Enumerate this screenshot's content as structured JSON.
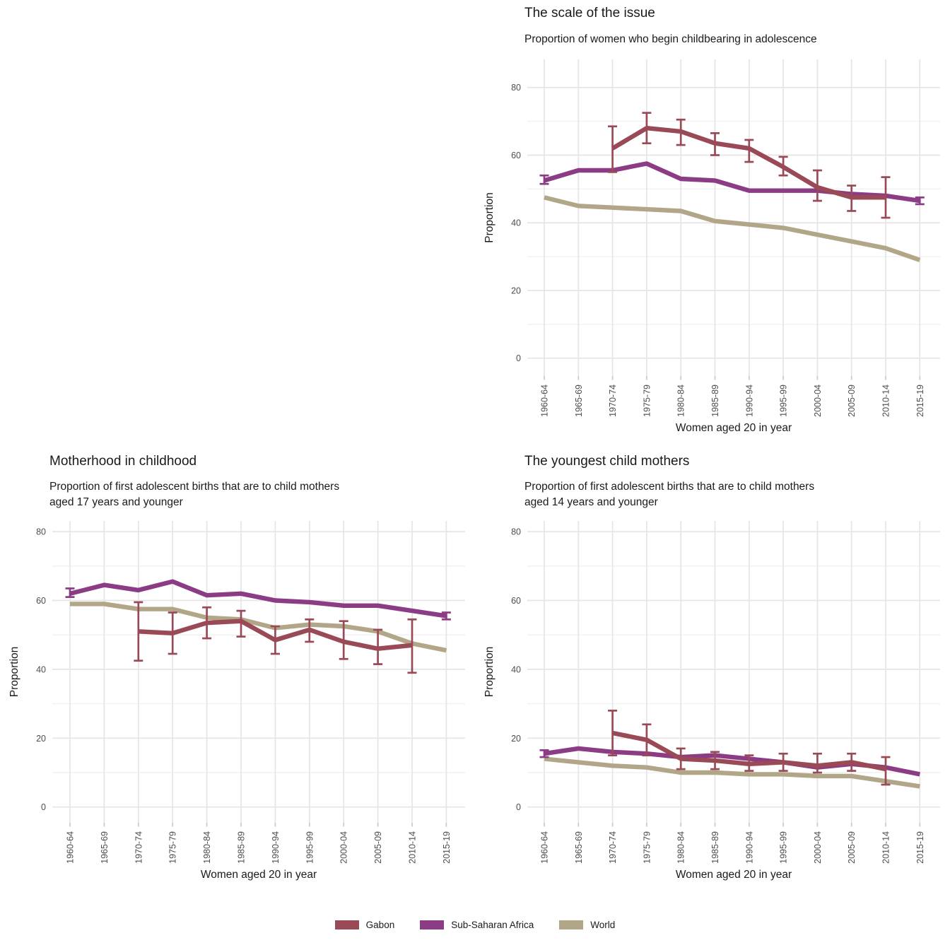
{
  "colors": {
    "gabon": "#994A56",
    "sub_saharan_africa": "#8C3B85",
    "world": "#B2A689",
    "grid_major": "#E5E5E5",
    "grid_minor": "#F1F1F1",
    "tick_mark": "#C9C9C9",
    "tick_text": "#4D4D4D",
    "title_text": "#1A1A1A"
  },
  "axes": {
    "x_title": "Women aged 20 in year",
    "y_title": "Proportion",
    "yticks": [
      0,
      20,
      40,
      60,
      80
    ],
    "yminor": [
      10,
      30,
      50,
      70
    ]
  },
  "legend": {
    "items": [
      {
        "label": "Gabon",
        "color_key": "gabon"
      },
      {
        "label": "Sub-Saharan Africa",
        "color_key": "sub_saharan_africa"
      },
      {
        "label": "World",
        "color_key": "world"
      }
    ]
  },
  "chart_data": [
    {
      "type": "line",
      "title": "The scale of the issue",
      "subtitle_lines": [
        "Proportion of women who begin childbearing in adolescence"
      ],
      "xlabel": "Women aged 20 in year",
      "ylabel": "Proportion",
      "ylim": [
        0,
        80
      ],
      "grid": true,
      "legend_position": "bottom",
      "categories": [
        "1960-64",
        "1965-69",
        "1970-74",
        "1975-79",
        "1980-84",
        "1985-89",
        "1990-94",
        "1995-99",
        "2000-04",
        "2005-09",
        "2010-14",
        "2015-19"
      ],
      "series": [
        {
          "name": "Gabon",
          "color_key": "gabon",
          "values": [
            null,
            null,
            62,
            68,
            67,
            63.5,
            62,
            56.5,
            50.5,
            47.5,
            47.5,
            null
          ],
          "error_bars": [
            null,
            null,
            [
              55,
              68.5
            ],
            [
              63.5,
              72.5
            ],
            [
              63,
              70.5
            ],
            [
              60,
              66.5
            ],
            [
              58,
              64.5
            ],
            [
              54,
              59.5
            ],
            [
              46.5,
              55.5
            ],
            [
              43.5,
              51
            ],
            [
              41.5,
              53.5
            ],
            null
          ]
        },
        {
          "name": "Sub-Saharan Africa",
          "color_key": "sub_saharan_africa",
          "values": [
            52.5,
            55.5,
            55.5,
            57.5,
            53,
            52.5,
            49.5,
            49.5,
            49.5,
            48.5,
            48,
            46.5
          ],
          "error_bars": [
            [
              51.5,
              54
            ],
            null,
            null,
            null,
            null,
            null,
            null,
            null,
            null,
            null,
            null,
            [
              45.5,
              47.5
            ]
          ]
        },
        {
          "name": "World",
          "color_key": "world",
          "values": [
            47.5,
            45,
            44.5,
            44,
            43.5,
            40.5,
            39.5,
            38.5,
            36.5,
            34.5,
            32.5,
            29
          ],
          "error_bars": null
        }
      ]
    },
    {
      "type": "line",
      "title": "Motherhood in childhood",
      "subtitle_lines": [
        "Proportion of first adolescent births that are to child mothers",
        "aged 17 years and younger"
      ],
      "xlabel": "Women aged 20 in year",
      "ylabel": "Proportion",
      "ylim": [
        0,
        80
      ],
      "grid": true,
      "legend_position": "bottom",
      "categories": [
        "1960-64",
        "1965-69",
        "1970-74",
        "1975-79",
        "1980-84",
        "1985-89",
        "1990-94",
        "1995-99",
        "2000-04",
        "2005-09",
        "2010-14",
        "2015-19"
      ],
      "series": [
        {
          "name": "Gabon",
          "color_key": "gabon",
          "values": [
            null,
            null,
            51,
            50.5,
            53.5,
            54,
            48.5,
            51.5,
            48,
            46,
            47,
            null
          ],
          "error_bars": [
            null,
            null,
            [
              42.5,
              59.5
            ],
            [
              44.5,
              56.5
            ],
            [
              49,
              58
            ],
            [
              49.5,
              57
            ],
            [
              44.5,
              52.5
            ],
            [
              48,
              54.5
            ],
            [
              43,
              54
            ],
            [
              41.5,
              51.5
            ],
            [
              39,
              54.5
            ],
            null
          ]
        },
        {
          "name": "Sub-Saharan Africa",
          "color_key": "sub_saharan_africa",
          "values": [
            62,
            64.5,
            63,
            65.5,
            61.5,
            62,
            60,
            59.5,
            58.5,
            58.5,
            57,
            55.5
          ],
          "error_bars": [
            [
              61,
              63.5
            ],
            null,
            null,
            null,
            null,
            null,
            null,
            null,
            null,
            null,
            null,
            [
              54.5,
              56.5
            ]
          ]
        },
        {
          "name": "World",
          "color_key": "world",
          "values": [
            59,
            59,
            57.5,
            57.5,
            55,
            54.5,
            52,
            53,
            52.5,
            51,
            47.5,
            45.5
          ],
          "error_bars": null
        }
      ]
    },
    {
      "type": "line",
      "title": "The youngest child mothers",
      "subtitle_lines": [
        "Proportion of first adolescent births that are to child mothers",
        "aged 14 years and younger"
      ],
      "xlabel": "Women aged 20 in year",
      "ylabel": "Proportion",
      "ylim": [
        0,
        80
      ],
      "grid": true,
      "legend_position": "bottom",
      "categories": [
        "1960-64",
        "1965-69",
        "1970-74",
        "1975-79",
        "1980-84",
        "1985-89",
        "1990-94",
        "1995-99",
        "2000-04",
        "2005-09",
        "2010-14",
        "2015-19"
      ],
      "series": [
        {
          "name": "Gabon",
          "color_key": "gabon",
          "values": [
            null,
            null,
            21.5,
            19.5,
            14,
            13.5,
            12.5,
            13,
            12,
            13,
            11,
            null
          ],
          "error_bars": [
            null,
            null,
            [
              15,
              28
            ],
            [
              15,
              24
            ],
            [
              11,
              17
            ],
            [
              11,
              16
            ],
            [
              10.5,
              15
            ],
            [
              10.5,
              15.5
            ],
            [
              10,
              15.5
            ],
            [
              10.5,
              15.5
            ],
            [
              6.5,
              14.5
            ],
            null
          ]
        },
        {
          "name": "Sub-Saharan Africa",
          "color_key": "sub_saharan_africa",
          "values": [
            15.5,
            17,
            16,
            15.5,
            14.5,
            15,
            14,
            13,
            11.5,
            12.5,
            11.5,
            9.5
          ],
          "error_bars": [
            [
              14.5,
              16.5
            ],
            null,
            null,
            null,
            null,
            null,
            null,
            null,
            null,
            null,
            null,
            null
          ]
        },
        {
          "name": "World",
          "color_key": "world",
          "values": [
            14,
            13,
            12,
            11.5,
            10,
            10,
            9.5,
            9.5,
            9,
            9,
            7.5,
            6
          ],
          "error_bars": null
        }
      ]
    }
  ]
}
